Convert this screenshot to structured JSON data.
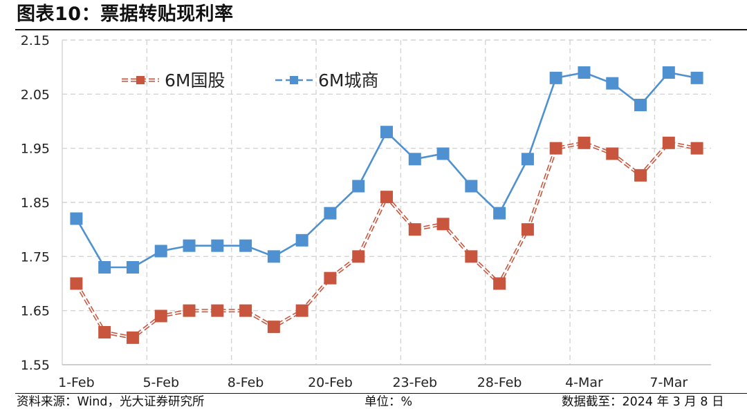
{
  "header": {
    "title": "图表10：票据转贴现利率"
  },
  "footer": {
    "source": "资料来源：Wind，光大证券研究所",
    "unit": "单位：%",
    "date": "数据截至：2024 年 3 月 8 日"
  },
  "chart_data": {
    "type": "line",
    "title": "图表10：票据转贴现利率",
    "xlabel": "",
    "ylabel": "",
    "ylim": [
      1.55,
      2.15
    ],
    "yticks": [
      1.55,
      1.65,
      1.75,
      1.85,
      1.95,
      2.05,
      2.15
    ],
    "ytick_labels": [
      "1.55",
      "1.65",
      "1.75",
      "1.85",
      "1.95",
      "2.05",
      "2.15"
    ],
    "grid": true,
    "legend_position": "top-left",
    "x_tick_labels": [
      "1-Feb",
      "5-Feb",
      "8-Feb",
      "20-Feb",
      "23-Feb",
      "28-Feb",
      "4-Mar",
      "7-Mar"
    ],
    "x_tick_every": 3,
    "series": [
      {
        "name": "6M国股",
        "color": "#c8553d",
        "line_style": "double-dashed",
        "marker": "square",
        "values": [
          1.7,
          1.61,
          1.6,
          1.64,
          1.65,
          1.65,
          1.65,
          1.62,
          1.65,
          1.71,
          1.75,
          1.86,
          1.8,
          1.81,
          1.75,
          1.7,
          1.8,
          1.95,
          1.96,
          1.94,
          1.9,
          1.96,
          1.95
        ]
      },
      {
        "name": "6M城商",
        "color": "#4e90d0",
        "line_style": "solid",
        "marker": "square",
        "values": [
          1.82,
          1.73,
          1.73,
          1.76,
          1.77,
          1.77,
          1.77,
          1.75,
          1.78,
          1.83,
          1.88,
          1.98,
          1.93,
          1.94,
          1.88,
          1.83,
          1.93,
          2.08,
          2.09,
          2.07,
          2.03,
          2.09,
          2.08
        ]
      }
    ]
  }
}
